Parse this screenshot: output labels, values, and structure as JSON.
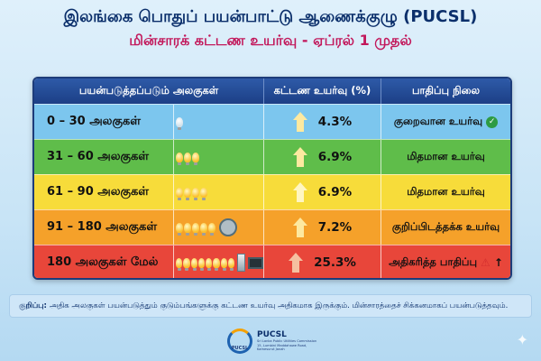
{
  "header": {
    "title": "இலங்கை பொதுப் பயன்பாட்டு ஆணைக்குழு (PUCSL)",
    "subtitle": "மின்சாரக் கட்டண உயர்வு - ஏப்ரல் 1 முதல்"
  },
  "table": {
    "columns": [
      "பயன்படுத்தப்படும் அலகுகள்",
      "கட்டண உயர்வு (%)",
      "பாதிப்பு நிலை"
    ],
    "rows": [
      {
        "range": "0 – 30 அலகுகள்",
        "rate": "4.3%",
        "impact": "குறைவான உயர்வு",
        "color": "#7cc6ee",
        "arrow_color": "#fde9a0",
        "bulbs": 1,
        "bulb_style": "dim",
        "impact_icon": "check-icon"
      },
      {
        "range": "31 – 60 அலகுகள்",
        "rate": "6.9%",
        "impact": "மிதமான உயர்வு",
        "color": "#5fbd4a",
        "arrow_color": "#fde9a0",
        "bulbs": 3,
        "bulb_style": "lit",
        "impact_icon": ""
      },
      {
        "range": "61 – 90 அலகுகள்",
        "rate": "6.9%",
        "impact": "மிதமான உயர்வு",
        "color": "#f7dc3a",
        "arrow_color": "#fff6c2",
        "bulbs": 4,
        "bulb_style": "lit",
        "impact_icon": ""
      },
      {
        "range": "91 – 180 அலகுகள்",
        "rate": "7.2%",
        "impact": "குறிப்பிடத்தக்க உயர்வு",
        "color": "#f5a12a",
        "arrow_color": "#fde9a0",
        "bulbs": 5,
        "bulb_style": "lit",
        "impact_icon": "fan-icon"
      },
      {
        "range": "180 அலகுகள் மேல்",
        "rate": "25.3%",
        "impact": "அதிகரித்த பாதிப்பு",
        "color": "#e8463a",
        "arrow_color": "#f5c0a0",
        "bulbs": 8,
        "bulb_style": "lit",
        "impact_icon": "warning-icon"
      }
    ]
  },
  "note": {
    "label": "குறிப்பு:",
    "text": "அதிக அலகுகள் பயன்படுத்தும் குடும்பங்களுக்கு கட்டண உயர்வு அதிகமாக இருக்கும். மின்சாரத்தைச் சிக்கனமாகப் பயன்படுத்தவும்."
  },
  "footer": {
    "logo_text": "PUCSL",
    "brand": "PUCSL",
    "org_line1": "Sri Lanka Public Utilities Commission",
    "org_line2": "15, Lumbini Maddahawe Road,",
    "org_line3": "Kamesurut Janah"
  }
}
